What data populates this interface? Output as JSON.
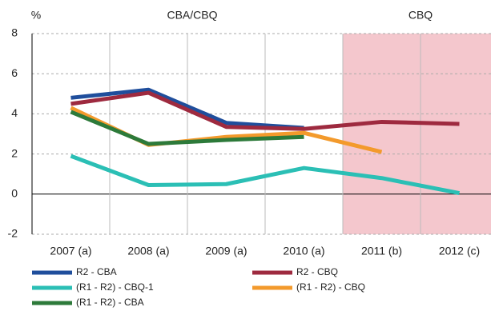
{
  "chart_data": {
    "type": "line",
    "y_unit": "%",
    "annotations": [
      "CBA/CBQ",
      "CBQ"
    ],
    "shade": {
      "start": "2011 (b)",
      "color": "#f4c7cd"
    },
    "categories": [
      "2007 (a)",
      "2008 (a)",
      "2009 (a)",
      "2010 (a)",
      "2011 (b)",
      "2012 (c)"
    ],
    "series": [
      {
        "name": "R2 - CBA",
        "color": "#1f4e9c",
        "values": [
          4.8,
          5.2,
          3.55,
          3.3,
          null,
          null
        ]
      },
      {
        "name": "R2 - CBQ",
        "color": "#9e2a3f",
        "values": [
          4.5,
          5.05,
          3.35,
          3.25,
          3.6,
          3.5
        ]
      },
      {
        "name": "(R1 - R2) - CBQ-1",
        "color": "#2bbfb5",
        "values": [
          1.9,
          0.45,
          0.5,
          1.3,
          0.8,
          0.05
        ]
      },
      {
        "name": "(R1 - R2) - CBQ",
        "color": "#f39a2c",
        "values": [
          4.3,
          2.45,
          2.85,
          3.05,
          2.1,
          null
        ]
      },
      {
        "name": "(R1 - R2) - CBA",
        "color": "#2d7a3a",
        "values": [
          4.1,
          2.5,
          2.7,
          2.85,
          null,
          null
        ]
      }
    ],
    "ylim": [
      -2,
      8
    ],
    "yticks": [
      -2,
      0,
      2,
      4,
      6,
      8
    ],
    "grid": true
  }
}
